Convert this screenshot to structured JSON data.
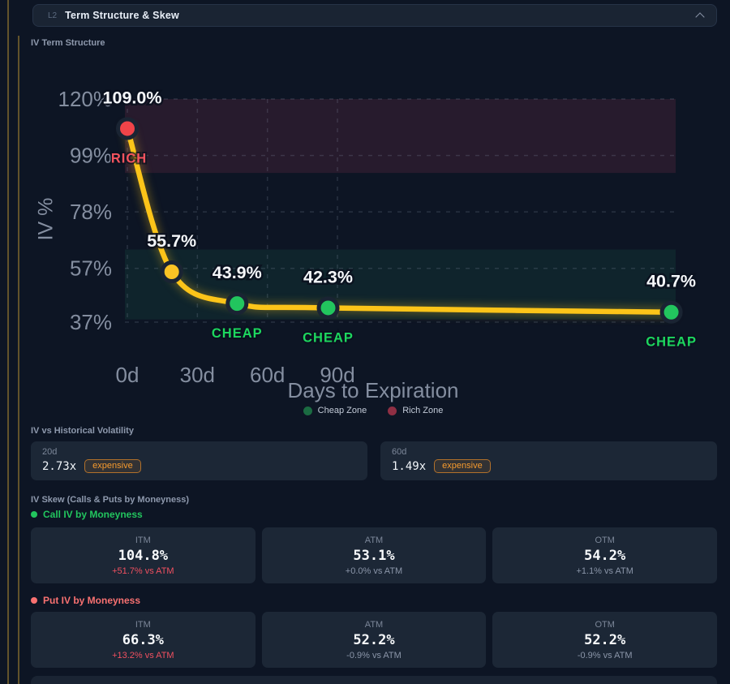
{
  "header": {
    "level": "L2",
    "title": "Term Structure & Skew"
  },
  "term_structure": {
    "section_title": "IV Term Structure"
  },
  "chart_data": {
    "type": "line",
    "title": "IV Term Structure",
    "xlabel": "Days to Expiration",
    "ylabel": "IV %",
    "x_ticks": [
      {
        "days": 0,
        "label": "0d"
      },
      {
        "days": 30,
        "label": "30d"
      },
      {
        "days": 60,
        "label": "60d"
      },
      {
        "days": 90,
        "label": "90d"
      }
    ],
    "y_ticks": [
      {
        "pct": 120,
        "label": "120%"
      },
      {
        "pct": 99,
        "label": "99%"
      },
      {
        "pct": 78,
        "label": "78%"
      },
      {
        "pct": 57,
        "label": "57%"
      },
      {
        "pct": 37,
        "label": "37%"
      }
    ],
    "ylim": [
      37,
      120
    ],
    "grid": "dashed",
    "line_color": "#fcc419",
    "points": [
      {
        "days_est": 0,
        "iv_pct": 109.0,
        "label": "109.0%",
        "status": "RICH",
        "color": "#ef4449"
      },
      {
        "days_est": 19,
        "iv_pct": 55.7,
        "label": "55.7%",
        "status": "",
        "color": "#fbc324"
      },
      {
        "days_est": 47,
        "iv_pct": 43.9,
        "label": "43.9%",
        "status": "CHEAP",
        "color": "#22c55e"
      },
      {
        "days_est": 86,
        "iv_pct": 42.3,
        "label": "42.3%",
        "status": "CHEAP",
        "color": "#22c55e"
      },
      {
        "days_est": 233,
        "iv_pct": 40.7,
        "label": "40.7%",
        "status": "CHEAP",
        "color": "#22c55e"
      }
    ],
    "zones": [
      {
        "name": "Cheap Zone",
        "from_pct": 38,
        "to_pct": 64,
        "fill": "rgba(45,212,140,0.08)"
      },
      {
        "name": "Rich Zone",
        "from_pct": 92.5,
        "to_pct": 120,
        "fill": "rgba(214,72,110,0.13)"
      }
    ],
    "legend": [
      {
        "label": "Cheap Zone",
        "color": "#1b6b42"
      },
      {
        "label": "Rich Zone",
        "color": "#8f2f44"
      }
    ],
    "status_colors": {
      "RICH": "#f4545e",
      "CHEAP": "#1dd75e"
    }
  },
  "iv_vs_hv": {
    "section_title": "IV vs Historical Volatility",
    "badge_color": "#f59a2e",
    "cards": [
      {
        "label": "20d",
        "value": "2.73x",
        "badge": "expensive"
      },
      {
        "label": "60d",
        "value": "1.49x",
        "badge": "expensive"
      }
    ]
  },
  "iv_skew": {
    "section_title": "IV Skew (Calls & Puts by Moneyness)",
    "call_group": {
      "name": "Call IV by Moneyness",
      "accent": "#22c55e",
      "cards": [
        {
          "label": "ITM",
          "value": "104.8%",
          "delta": "+51.7% vs ATM",
          "delta_color": "#f05060"
        },
        {
          "label": "ATM",
          "value": "53.1%",
          "delta": "+0.0% vs ATM",
          "delta_color": "#8b96a9"
        },
        {
          "label": "OTM",
          "value": "54.2%",
          "delta": "+1.1% vs ATM",
          "delta_color": "#8b96a9"
        }
      ]
    },
    "put_group": {
      "name": "Put IV by Moneyness",
      "accent": "#f87171",
      "cards": [
        {
          "label": "ITM",
          "value": "66.3%",
          "delta": "+13.2% vs ATM",
          "delta_color": "#f05060"
        },
        {
          "label": "ATM",
          "value": "52.2%",
          "delta": "-0.9% vs ATM",
          "delta_color": "#8b96a9"
        },
        {
          "label": "OTM",
          "value": "52.2%",
          "delta": "-0.9% vs ATM",
          "delta_color": "#8b96a9"
        }
      ]
    }
  }
}
